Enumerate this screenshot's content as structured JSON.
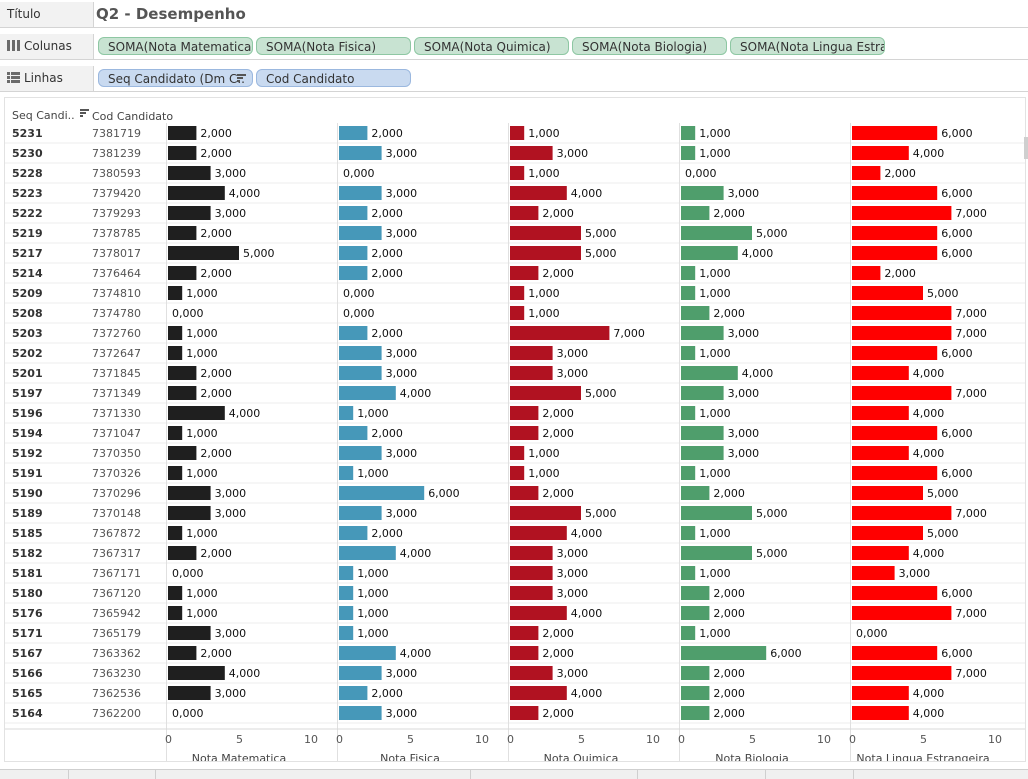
{
  "shelves": {
    "title_label": "Título",
    "title_value": "Q2 - Desempenho",
    "columns_label": "Colunas",
    "rows_label": "Linhas",
    "column_pills": [
      "SOMA(Nota Matematica)",
      "SOMA(Nota Fisica)",
      "SOMA(Nota Quimica)",
      "SOMA(Nota Biologia)",
      "SOMA(Nota Lingua Estra.."
    ],
    "row_pills": [
      "Seq Candidato (Dm C..",
      "Cod Candidato"
    ]
  },
  "headers": {
    "seq": "Seq Candi..",
    "cod": "Cod Candidato"
  },
  "colors": {
    "Nota Matematica": "#1f1f1f",
    "Nota Fisica": "#4698b9",
    "Nota Quimica": "#b11221",
    "Nota Biologia": "#4f9e6c",
    "Nota Lingua Estrangeira": "#ff0000",
    "pill_green": "#c8e3d2",
    "pill_blue": "#c9daf0"
  },
  "chart_data": {
    "type": "bar",
    "orientation": "horizontal",
    "xlim": [
      0,
      10
    ],
    "ticks": [
      0,
      5,
      10
    ],
    "grid": false,
    "categories": [
      {
        "seq": "5231",
        "cod": "7381719"
      },
      {
        "seq": "5230",
        "cod": "7381239"
      },
      {
        "seq": "5228",
        "cod": "7380593"
      },
      {
        "seq": "5223",
        "cod": "7379420"
      },
      {
        "seq": "5222",
        "cod": "7379293"
      },
      {
        "seq": "5219",
        "cod": "7378785"
      },
      {
        "seq": "5217",
        "cod": "7378017"
      },
      {
        "seq": "5214",
        "cod": "7376464"
      },
      {
        "seq": "5209",
        "cod": "7374810"
      },
      {
        "seq": "5208",
        "cod": "7374780"
      },
      {
        "seq": "5203",
        "cod": "7372760"
      },
      {
        "seq": "5202",
        "cod": "7372647"
      },
      {
        "seq": "5201",
        "cod": "7371845"
      },
      {
        "seq": "5197",
        "cod": "7371349"
      },
      {
        "seq": "5196",
        "cod": "7371330"
      },
      {
        "seq": "5194",
        "cod": "7371047"
      },
      {
        "seq": "5192",
        "cod": "7370350"
      },
      {
        "seq": "5191",
        "cod": "7370326"
      },
      {
        "seq": "5190",
        "cod": "7370296"
      },
      {
        "seq": "5189",
        "cod": "7370148"
      },
      {
        "seq": "5185",
        "cod": "7367872"
      },
      {
        "seq": "5182",
        "cod": "7367317"
      },
      {
        "seq": "5181",
        "cod": "7367171"
      },
      {
        "seq": "5180",
        "cod": "7367120"
      },
      {
        "seq": "5176",
        "cod": "7365942"
      },
      {
        "seq": "5171",
        "cod": "7365179"
      },
      {
        "seq": "5167",
        "cod": "7363362"
      },
      {
        "seq": "5166",
        "cod": "7363230"
      },
      {
        "seq": "5165",
        "cod": "7362536"
      },
      {
        "seq": "5164",
        "cod": "7362200"
      }
    ],
    "series": [
      {
        "name": "Nota Matematica",
        "values": [
          2,
          2,
          3,
          4,
          3,
          2,
          5,
          2,
          1,
          0,
          1,
          1,
          2,
          2,
          4,
          1,
          2,
          1,
          3,
          3,
          1,
          2,
          0,
          1,
          1,
          3,
          2,
          4,
          3,
          0
        ]
      },
      {
        "name": "Nota Fisica",
        "values": [
          2,
          3,
          0,
          3,
          2,
          3,
          2,
          2,
          0,
          0,
          2,
          3,
          3,
          4,
          1,
          2,
          3,
          1,
          6,
          3,
          2,
          4,
          1,
          1,
          1,
          1,
          4,
          3,
          2,
          3
        ]
      },
      {
        "name": "Nota Quimica",
        "values": [
          1,
          3,
          1,
          4,
          2,
          5,
          5,
          2,
          1,
          1,
          7,
          3,
          3,
          5,
          2,
          2,
          1,
          1,
          2,
          5,
          4,
          3,
          3,
          3,
          4,
          2,
          2,
          3,
          4,
          2
        ]
      },
      {
        "name": "Nota Biologia",
        "values": [
          1,
          1,
          0,
          3,
          2,
          5,
          4,
          1,
          1,
          2,
          3,
          1,
          4,
          3,
          1,
          3,
          3,
          1,
          2,
          5,
          1,
          5,
          1,
          2,
          2,
          1,
          6,
          2,
          2,
          2
        ]
      },
      {
        "name": "Nota Lingua Estrangeira",
        "values": [
          6,
          4,
          2,
          6,
          7,
          6,
          6,
          2,
          5,
          7,
          7,
          6,
          4,
          7,
          4,
          6,
          4,
          6,
          5,
          7,
          5,
          4,
          3,
          6,
          7,
          0,
          6,
          7,
          4,
          4
        ]
      }
    ]
  }
}
